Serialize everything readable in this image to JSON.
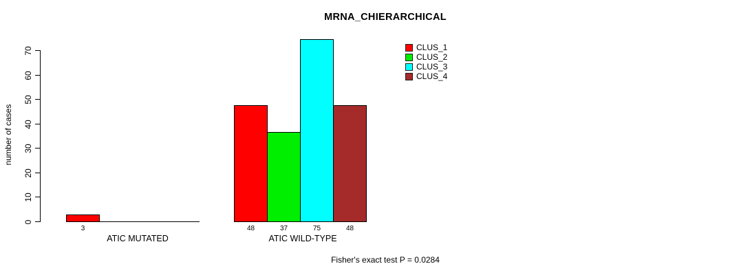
{
  "chart_data": {
    "type": "bar",
    "title": "MRNA_CHIERARCHICAL",
    "ylabel": "number of cases",
    "xlabel": "",
    "ylim": [
      0,
      75
    ],
    "yticks": [
      0,
      10,
      20,
      30,
      40,
      50,
      60,
      70
    ],
    "grid": false,
    "legend_position": "top-right-inside",
    "groups": [
      "ATIC MUTATED",
      "ATIC WILD-TYPE"
    ],
    "series": [
      {
        "name": "CLUS_1",
        "color": "#FF0000",
        "values": [
          3,
          48
        ]
      },
      {
        "name": "CLUS_2",
        "color": "#00EE00",
        "values": [
          0,
          37
        ]
      },
      {
        "name": "CLUS_3",
        "color": "#00FFFF",
        "values": [
          0,
          75
        ]
      },
      {
        "name": "CLUS_4",
        "color": "#A52A2A",
        "values": [
          0,
          48
        ]
      }
    ],
    "bar_value_labels": {
      "ATIC MUTATED": [
        "3"
      ],
      "ATIC WILD-TYPE": [
        "48",
        "37",
        "75",
        "48"
      ]
    },
    "annotation": "Fisher's exact test P = 0.0284"
  }
}
